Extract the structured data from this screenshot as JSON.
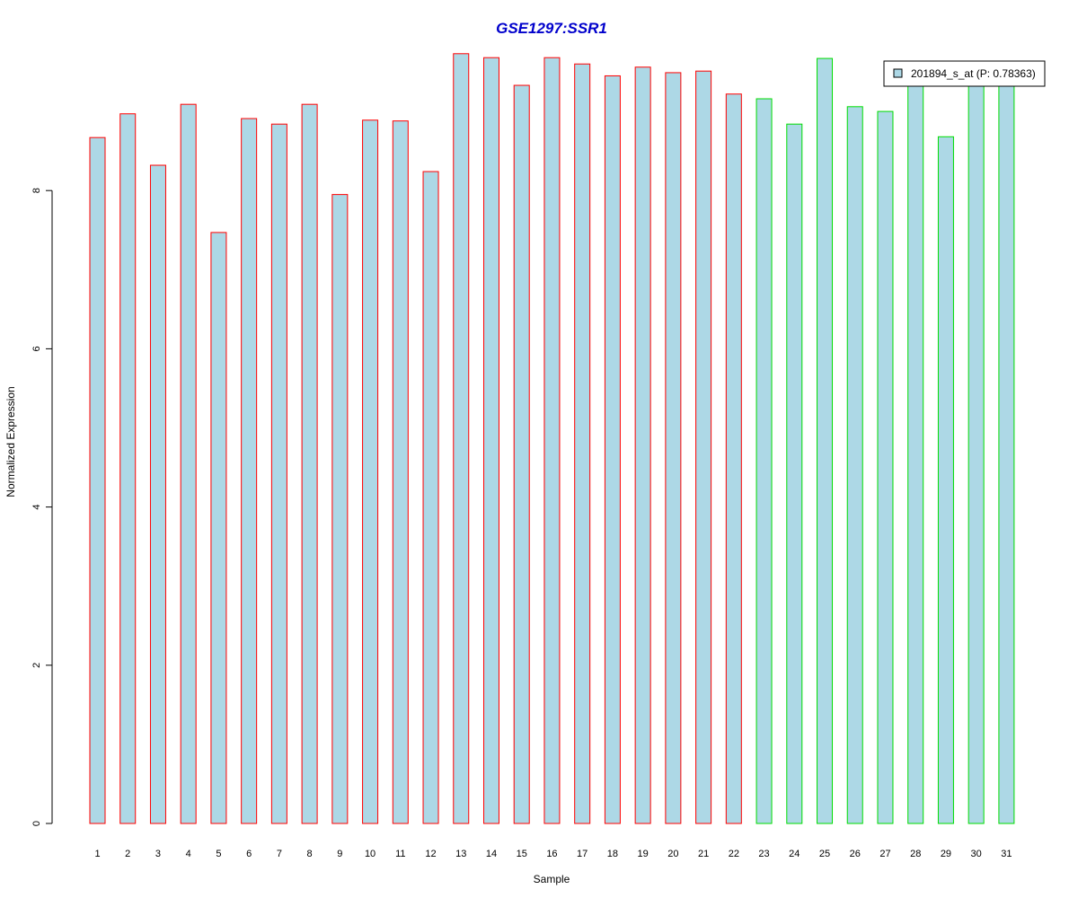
{
  "chart_data": {
    "type": "bar",
    "title": "GSE1297:SSR1",
    "xlabel": "Sample",
    "ylabel": "Normalized Expression",
    "categories": [
      "1",
      "2",
      "3",
      "4",
      "5",
      "6",
      "7",
      "8",
      "9",
      "10",
      "11",
      "12",
      "13",
      "14",
      "15",
      "16",
      "17",
      "18",
      "19",
      "20",
      "21",
      "22",
      "23",
      "24",
      "25",
      "26",
      "27",
      "28",
      "29",
      "30",
      "31"
    ],
    "series": [
      {
        "name": "201894_s_at (P: 0.78363)",
        "values": [
          8.67,
          8.97,
          8.32,
          9.09,
          7.47,
          8.91,
          8.84,
          9.09,
          7.95,
          8.89,
          8.88,
          8.24,
          9.73,
          9.68,
          9.33,
          9.68,
          9.6,
          9.45,
          9.56,
          9.49,
          9.51,
          9.22,
          9.16,
          8.84,
          9.67,
          9.06,
          9.0,
          9.33,
          8.68,
          9.33,
          9.33
        ]
      }
    ],
    "groups": [
      {
        "border_color": "#ff0000",
        "samples": [
          1,
          22
        ]
      },
      {
        "border_color": "#00dd00",
        "samples": [
          23,
          31
        ]
      }
    ],
    "bar_fill": "#add8e6",
    "yticks": [
      0,
      2,
      4,
      6,
      8
    ],
    "ylim": [
      0,
      9.73
    ],
    "grid": false,
    "legend_position": "top-right",
    "title_color": "#0000cc"
  }
}
